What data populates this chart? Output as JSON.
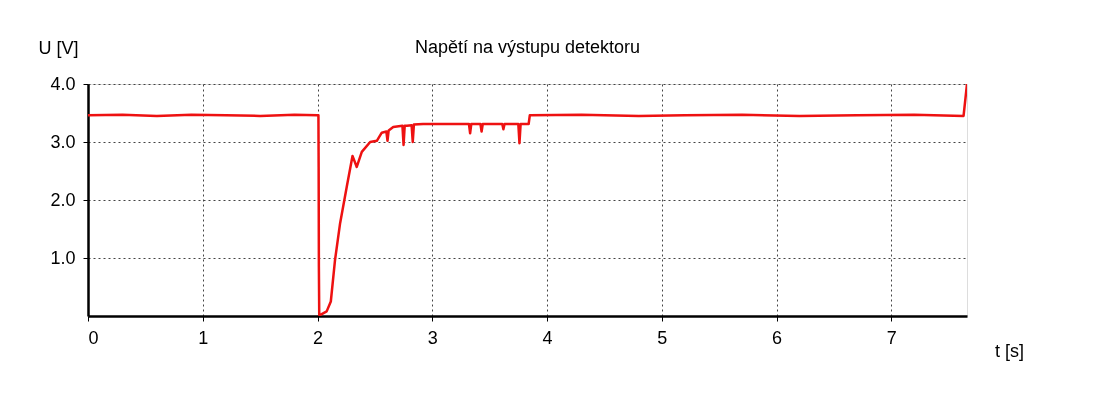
{
  "chart_data": {
    "type": "line",
    "title": "Napětí na výstupu detektoru",
    "xlabel": "t [s]",
    "ylabel": "U [V]",
    "xlim": [
      0,
      7.66
    ],
    "ylim": [
      0,
      4.0
    ],
    "xticks": [
      0,
      1,
      2,
      3,
      4,
      5,
      6,
      7
    ],
    "yticks": [
      {
        "value": 1,
        "label": "1.0"
      },
      {
        "value": 2,
        "label": "2.0"
      },
      {
        "value": 3,
        "label": "3.0"
      },
      {
        "value": 4,
        "label": "4.0"
      }
    ],
    "grid": true,
    "marker": "none",
    "line_style": "solid",
    "series": [
      {
        "color": "#ee1111",
        "x": [
          0,
          0.3,
          0.6,
          0.9,
          1.2,
          1.5,
          1.8,
          2.0,
          2.008,
          2.01,
          2.012,
          2.015,
          2.025,
          2.08,
          2.116,
          2.153,
          2.197,
          2.255,
          2.305,
          2.342,
          2.386,
          2.459,
          2.517,
          2.56,
          2.6,
          2.61,
          2.62,
          2.66,
          2.74,
          2.75,
          2.76,
          2.78,
          2.82,
          2.83,
          2.84,
          2.92,
          3.1,
          3.32,
          3.33,
          3.34,
          3.42,
          3.43,
          3.44,
          3.61,
          3.62,
          3.63,
          3.75,
          3.76,
          3.77,
          3.84,
          3.85,
          4.3,
          4.8,
          5.2,
          5.7,
          6.2,
          6.7,
          7.2,
          7.63,
          7.66
        ],
        "values": [
          3.46,
          3.47,
          3.45,
          3.47,
          3.46,
          3.45,
          3.47,
          3.46,
          3.46,
          2.57,
          0.85,
          0.02,
          0.02,
          0.08,
          0.25,
          0.97,
          1.6,
          2.23,
          2.76,
          2.57,
          2.83,
          3.0,
          3.02,
          3.16,
          3.18,
          3.02,
          3.2,
          3.26,
          3.28,
          2.95,
          3.28,
          3.28,
          3.29,
          3.0,
          3.3,
          3.31,
          3.31,
          3.31,
          3.15,
          3.31,
          3.31,
          3.18,
          3.31,
          3.31,
          3.22,
          3.31,
          3.31,
          2.98,
          3.31,
          3.31,
          3.46,
          3.47,
          3.45,
          3.46,
          3.47,
          3.45,
          3.46,
          3.47,
          3.45,
          4.0
        ]
      }
    ]
  }
}
